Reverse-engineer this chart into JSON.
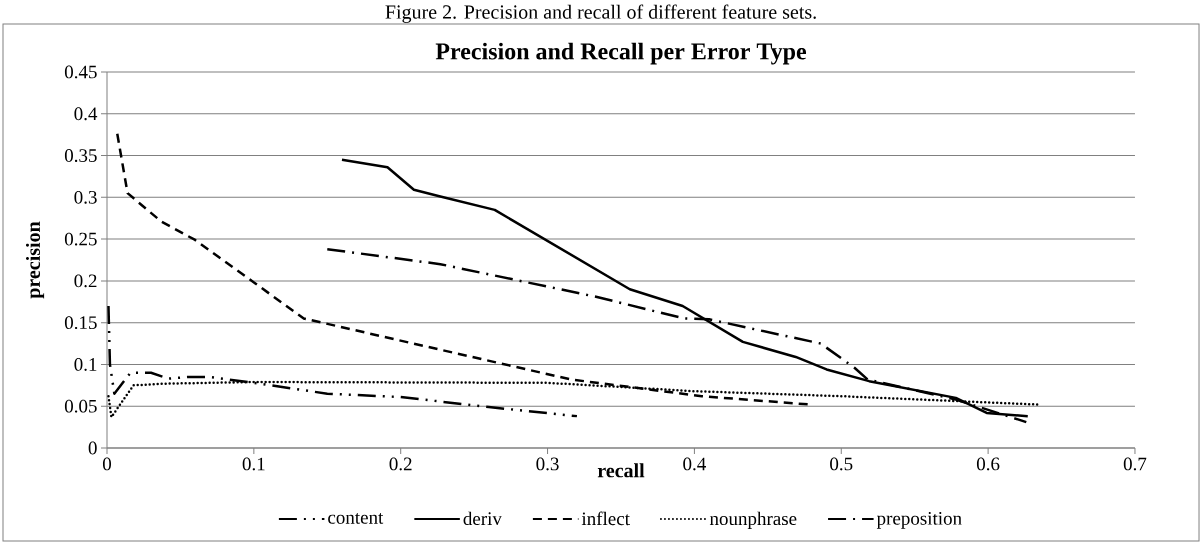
{
  "chart_data": {
    "type": "line",
    "title": "Precision and Recall per Error Type",
    "xlabel": "recall",
    "ylabel": "precision",
    "annotations": [
      "Figure 2. Precision and recall of different feature sets."
    ],
    "xlim": [
      0,
      0.7
    ],
    "xticks": [
      0,
      0.1,
      0.2,
      0.3,
      0.4,
      0.5,
      0.6,
      0.7
    ],
    "ylim": [
      0,
      0.45
    ],
    "yticks": [
      0,
      0.05,
      0.1,
      0.15,
      0.2,
      0.25,
      0.3,
      0.35,
      0.4,
      0.45
    ],
    "grid": "y",
    "legend": "bottom",
    "marker": "none",
    "series": [
      {
        "name": "content",
        "color": "#000000",
        "line_style": "dashdotdot",
        "x": [
          0.001,
          0.002,
          0.005,
          0.016,
          0.03,
          0.042,
          0.055,
          0.07,
          0.1,
          0.15,
          0.2,
          0.26,
          0.32
        ],
        "values": [
          0.17,
          0.1,
          0.065,
          0.09,
          0.09,
          0.083,
          0.085,
          0.085,
          0.078,
          0.065,
          0.061,
          0.049,
          0.038
        ]
      },
      {
        "name": "deriv",
        "color": "#000000",
        "line_style": "solid",
        "x": [
          0.16,
          0.191,
          0.209,
          0.227,
          0.264,
          0.356,
          0.392,
          0.433,
          0.469,
          0.49,
          0.519,
          0.578,
          0.599,
          0.627
        ],
        "values": [
          0.345,
          0.336,
          0.309,
          0.301,
          0.285,
          0.19,
          0.17,
          0.127,
          0.109,
          0.094,
          0.08,
          0.06,
          0.042,
          0.038
        ]
      },
      {
        "name": "inflect",
        "color": "#000000",
        "line_style": "dashed",
        "x": [
          0.007,
          0.014,
          0.037,
          0.06,
          0.134,
          0.236,
          0.316,
          0.405,
          0.479
        ],
        "values": [
          0.376,
          0.305,
          0.271,
          0.249,
          0.155,
          0.114,
          0.082,
          0.062,
          0.052
        ]
      },
      {
        "name": "nounphrase",
        "color": "#000000",
        "line_style": "dotted",
        "x": [
          0.001,
          0.003,
          0.018,
          0.04,
          0.1,
          0.3,
          0.4,
          0.5,
          0.634
        ],
        "values": [
          0.062,
          0.037,
          0.075,
          0.077,
          0.079,
          0.078,
          0.068,
          0.062,
          0.052
        ]
      },
      {
        "name": "preposition",
        "color": "#000000",
        "line_style": "dashdot",
        "x": [
          0.15,
          0.227,
          0.333,
          0.393,
          0.41,
          0.486,
          0.509,
          0.518,
          0.578,
          0.626
        ],
        "values": [
          0.238,
          0.22,
          0.181,
          0.155,
          0.154,
          0.125,
          0.096,
          0.082,
          0.058,
          0.031
        ]
      }
    ]
  }
}
